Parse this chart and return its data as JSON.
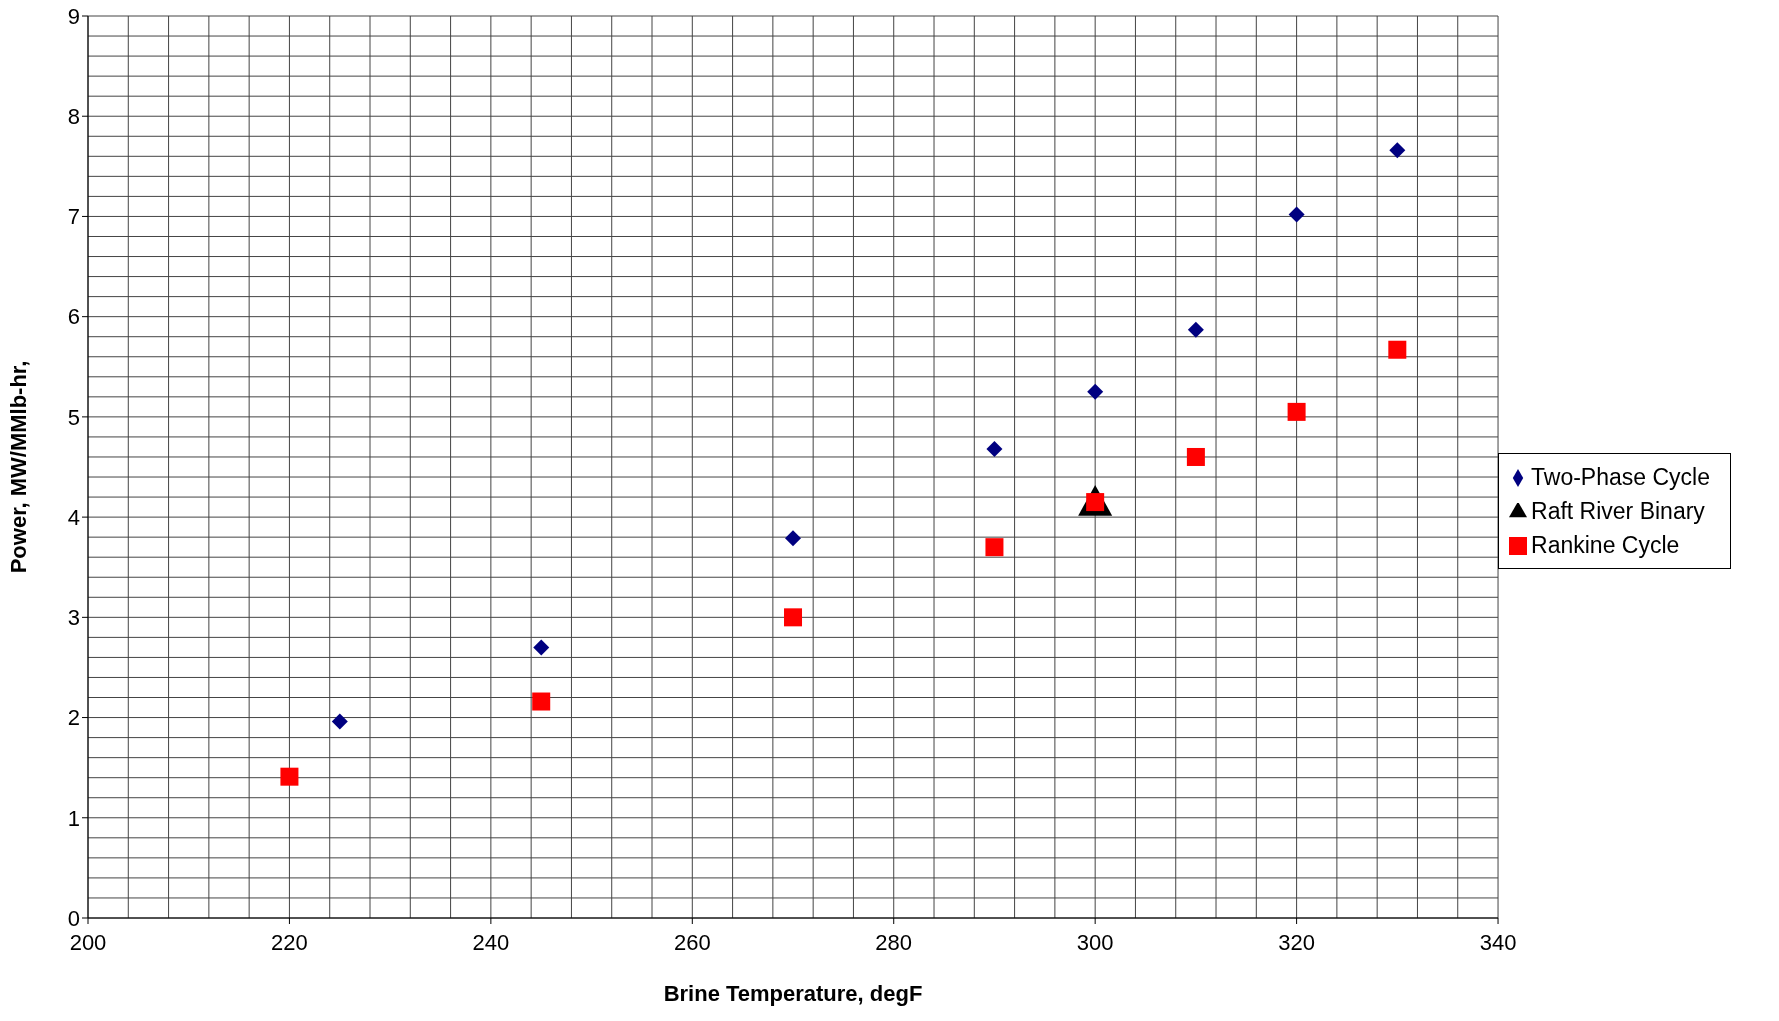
{
  "chart_data": {
    "type": "scatter",
    "xlabel": "Brine Temperature, degF",
    "ylabel": "Power, MW/MMlb-hr,",
    "xlim": [
      200,
      340
    ],
    "xticks": [
      200,
      220,
      240,
      260,
      280,
      300,
      320,
      340
    ],
    "ylim": [
      0,
      9
    ],
    "yticks": [
      0,
      1,
      2,
      3,
      4,
      5,
      6,
      7,
      8,
      9
    ],
    "grid": true,
    "legend": "right",
    "series": [
      {
        "name": "Two-Phase Cycle",
        "color": "#000080",
        "marker": "diamond",
        "x": [
          225,
          245,
          270,
          290,
          300,
          310,
          320,
          330
        ],
        "values": [
          1.96,
          2.7,
          3.79,
          4.68,
          5.25,
          5.87,
          7.02,
          7.66
        ]
      },
      {
        "name": "Raft River Binary",
        "color": "#000000",
        "marker": "triangle",
        "x": [
          300
        ],
        "values": [
          4.15
        ]
      },
      {
        "name": "Rankine Cycle",
        "color": "#ff0000",
        "marker": "square",
        "x": [
          220,
          245,
          270,
          290,
          300,
          310,
          320,
          330
        ],
        "values": [
          1.41,
          2.16,
          3.0,
          3.7,
          4.15,
          4.6,
          5.05,
          5.67
        ]
      }
    ]
  }
}
